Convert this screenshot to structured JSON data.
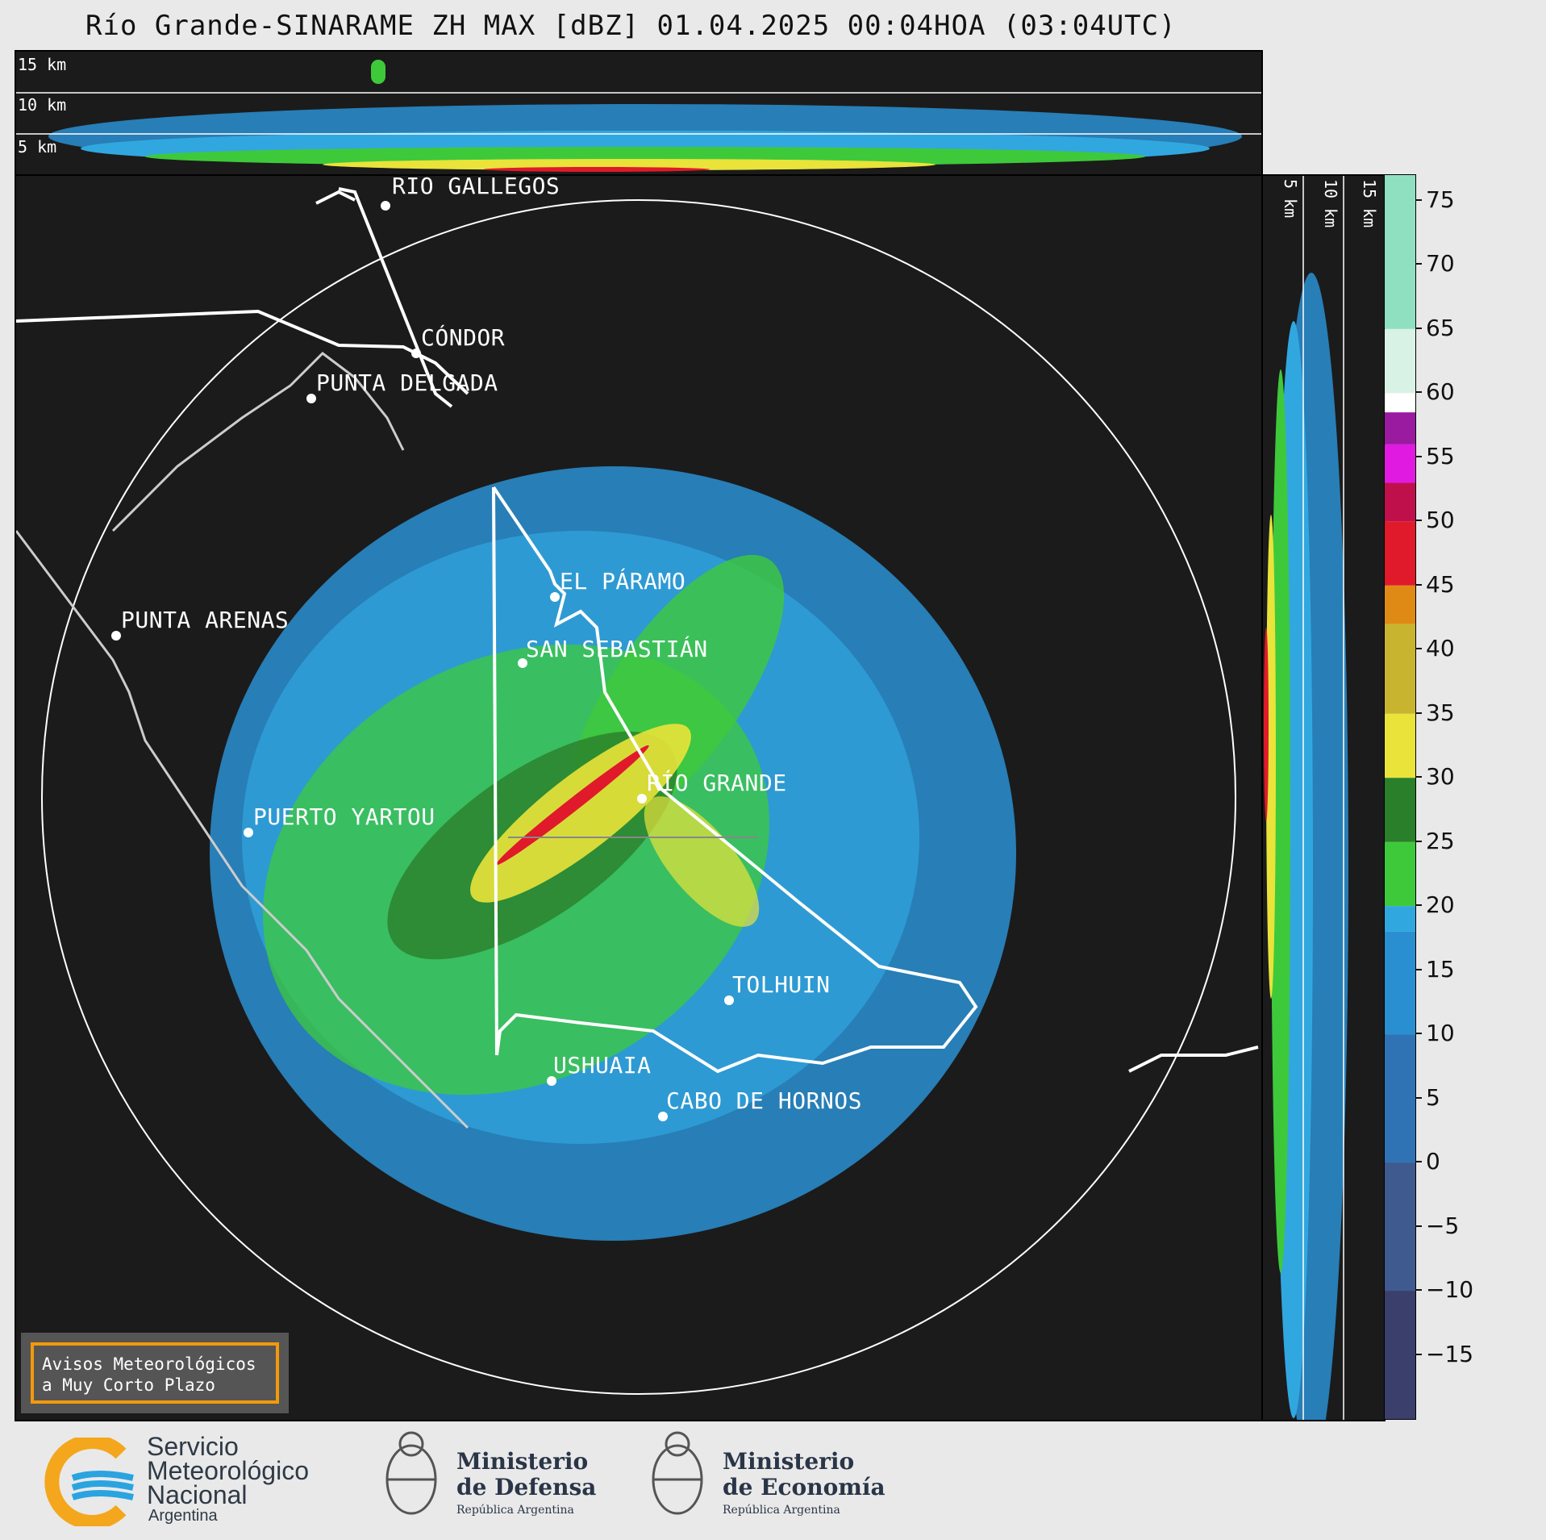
{
  "title": "Río Grande-SINARAME ZH MAX [dBZ] 01.04.2025 00:04HOA (03:04UTC)",
  "top_panel": {
    "height_labels": [
      "15 km",
      "10 km",
      "5 km"
    ]
  },
  "right_panel": {
    "height_labels": [
      "5 km",
      "10 km",
      "15 km"
    ]
  },
  "cities": [
    {
      "name": "RÍO GALLEGOS"
    },
    {
      "name": "CÓNDOR"
    },
    {
      "name": "PUNTA DELGADA"
    },
    {
      "name": "EL PÁRAMO"
    },
    {
      "name": "PUNTA ARENAS"
    },
    {
      "name": "SAN SEBASTIÁN"
    },
    {
      "name": "RÍO GRANDE"
    },
    {
      "name": "PUERTO YARTOU"
    },
    {
      "name": "TOLHUIN"
    },
    {
      "name": "USHUAIA"
    },
    {
      "name": "CABO DE HORNOS"
    }
  ],
  "colorbar": {
    "unit": "dBZ",
    "min": -20,
    "max": 77,
    "tick_labels": [
      "75",
      "70",
      "65",
      "60",
      "55",
      "50",
      "45",
      "40",
      "35",
      "30",
      "25",
      "20",
      "15",
      "10",
      "5",
      "0",
      "−5",
      "−10",
      "−15"
    ],
    "colors": {
      "low": "#3b3f6b",
      "blue": "#2a8fd1",
      "light_blue": "#31a7e0",
      "green": "#3ec93b",
      "dark_green": "#2a7f2a",
      "yellow": "#e9e33a",
      "orange": "#e08a16",
      "red": "#e01a2a",
      "magenta": "#e01ae0",
      "purple": "#9a1aa0",
      "white": "#ffffff",
      "mint": "#8fe0c0"
    }
  },
  "notice": {
    "line1": "Avisos Meteorológicos",
    "line2": "a Muy Corto Plazo"
  },
  "logos": {
    "smn": {
      "line1": "Servicio",
      "line2": "Meteorológico",
      "line3": "Nacional",
      "line4": "Argentina"
    },
    "defensa": {
      "line1": "Ministerio",
      "line2": "de Defensa",
      "line3": "República Argentina"
    },
    "economia": {
      "line1": "Ministerio",
      "line2": "de Economía",
      "line3": "República Argentina"
    }
  }
}
